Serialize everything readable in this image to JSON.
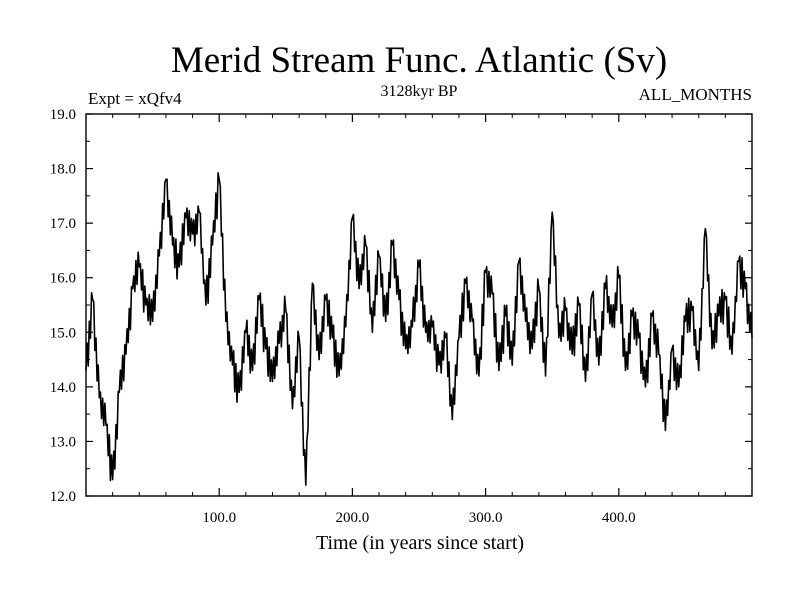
{
  "chart_data": {
    "type": "line",
    "title": "Merid Stream Func. Atlantic (Sv)",
    "subtitle_left": "Expt = xQfv4",
    "subtitle_center": "3128kyr BP",
    "subtitle_right": "ALL_MONTHS",
    "xlabel": "Time (in years since start)",
    "ylabel": "",
    "xlim": [
      0,
      500
    ],
    "ylim": [
      12.0,
      19.0
    ],
    "x_ticks": [
      {
        "value": 100,
        "label": "100.0"
      },
      {
        "value": 200,
        "label": "200.0"
      },
      {
        "value": 300,
        "label": "300.0"
      },
      {
        "value": 400,
        "label": "400.0"
      }
    ],
    "y_ticks": [
      {
        "value": 12,
        "label": "12.0"
      },
      {
        "value": 13,
        "label": "13.0"
      },
      {
        "value": 14,
        "label": "14.0"
      },
      {
        "value": 15,
        "label": "15.0"
      },
      {
        "value": 16,
        "label": "16.0"
      },
      {
        "value": 17,
        "label": "17.0"
      },
      {
        "value": 18,
        "label": "18.0"
      },
      {
        "value": 19,
        "label": "19.0"
      }
    ],
    "series": [
      {
        "name": "xQfv4",
        "color": "#000000",
        "x": [
          0,
          5,
          10,
          15,
          20,
          25,
          30,
          35,
          40,
          45,
          50,
          55,
          60,
          65,
          70,
          75,
          80,
          85,
          90,
          95,
          100,
          105,
          110,
          115,
          120,
          125,
          130,
          135,
          140,
          145,
          150,
          155,
          160,
          165,
          170,
          175,
          180,
          185,
          190,
          195,
          200,
          205,
          210,
          215,
          220,
          225,
          230,
          235,
          240,
          245,
          250,
          255,
          260,
          265,
          270,
          275,
          280,
          285,
          290,
          295,
          300,
          305,
          310,
          315,
          320,
          325,
          330,
          335,
          340,
          345,
          350,
          355,
          360,
          365,
          370,
          375,
          380,
          385,
          390,
          395,
          400,
          405,
          410,
          415,
          420,
          425,
          430,
          435,
          440,
          445,
          450,
          455,
          460,
          465,
          470,
          475,
          480,
          485,
          490,
          495,
          500
        ],
        "values": [
          14.3,
          15.6,
          13.8,
          13.3,
          12.3,
          13.9,
          14.6,
          15.8,
          16.2,
          15.5,
          15.2,
          16.4,
          17.8,
          16.6,
          16.2,
          17.1,
          16.8,
          17.2,
          15.5,
          16.6,
          17.8,
          15.2,
          14.4,
          13.9,
          15.0,
          14.3,
          15.6,
          14.7,
          14.1,
          14.8,
          15.4,
          13.6,
          14.9,
          12.2,
          15.9,
          14.5,
          15.6,
          14.9,
          14.2,
          15.1,
          17.1,
          15.8,
          16.6,
          15.0,
          16.4,
          15.2,
          16.6,
          15.6,
          14.7,
          15.1,
          16.2,
          15.0,
          15.1,
          14.4,
          14.9,
          13.4,
          14.9,
          15.9,
          15.2,
          14.2,
          16.1,
          15.7,
          14.3,
          15.3,
          14.4,
          16.3,
          15.2,
          14.7,
          15.8,
          14.2,
          17.2,
          14.9,
          15.4,
          14.6,
          15.5,
          14.1,
          15.7,
          14.4,
          15.8,
          15.1,
          16.0,
          14.3,
          15.3,
          14.9,
          14.0,
          15.3,
          14.6,
          13.2,
          14.7,
          14.0,
          15.2,
          15.4,
          14.3,
          16.9,
          14.7,
          15.3,
          15.6,
          14.6,
          16.3,
          15.8,
          14.9
        ]
      }
    ]
  }
}
